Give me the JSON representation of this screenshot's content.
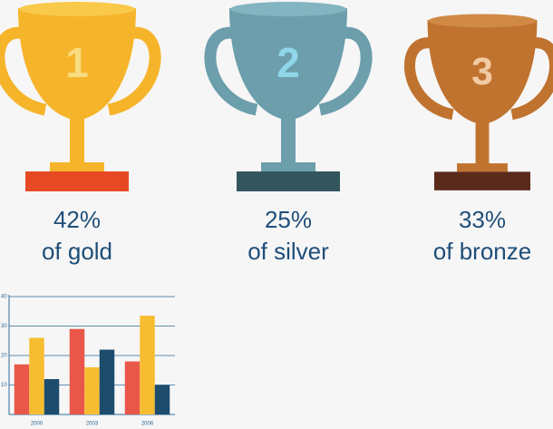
{
  "trophies": [
    {
      "rank": "1",
      "percent": "42%",
      "label": "of gold",
      "cup_color": "#f6b42b",
      "rim_color": "#f9c94a",
      "number_color": "#f9dc80",
      "base_color": "#e64a25"
    },
    {
      "rank": "2",
      "percent": "25%",
      "label": "of silver",
      "cup_color": "#6c9eac",
      "rim_color": "#83b4c1",
      "number_color": "#8fd6e8",
      "base_color": "#33565e"
    },
    {
      "rank": "3",
      "percent": "33%",
      "label": "of bronze",
      "cup_color": "#c0732f",
      "rim_color": "#d08a46",
      "number_color": "#f2cba3",
      "base_color": "#5b2a1b"
    }
  ],
  "chart_data": {
    "type": "bar",
    "categories": [
      "2000",
      "2003",
      "2006"
    ],
    "series": [
      {
        "color": "#e9574a",
        "values": [
          17,
          29,
          18
        ]
      },
      {
        "color": "#f7bd30",
        "values": [
          26,
          16,
          33.5
        ]
      },
      {
        "color": "#1d4c6d",
        "values": [
          12,
          22,
          10
        ]
      }
    ],
    "ylim": [
      0,
      40
    ],
    "yticks": [
      10,
      20,
      30,
      40
    ],
    "grid": true
  }
}
